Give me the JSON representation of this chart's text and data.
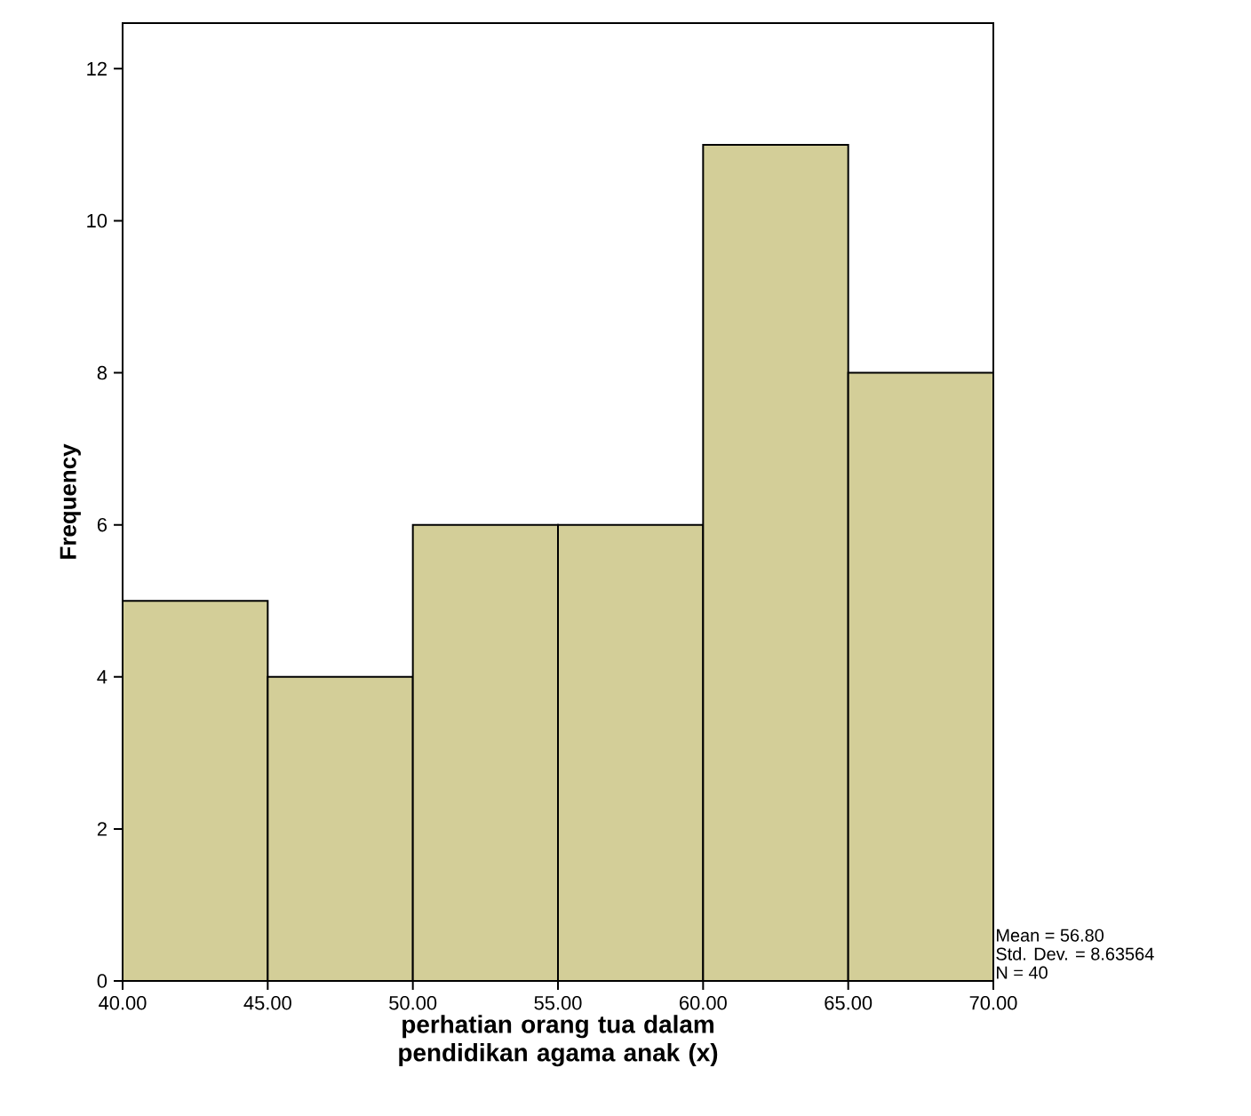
{
  "chart_data": {
    "type": "histogram",
    "xlabel": "perhatian orang tua dalam pendidikan agama anak (x)",
    "ylabel": "Frequency",
    "bins": [
      40,
      45,
      50,
      55,
      60,
      65,
      70
    ],
    "values": [
      5,
      4,
      6,
      6,
      11,
      8
    ],
    "color": "#d3ce98",
    "xlim": [
      40,
      70
    ],
    "ylim": [
      0,
      12.6
    ],
    "xticks": [
      {
        "value": 40,
        "label": "40.00"
      },
      {
        "value": 45,
        "label": "45.00"
      },
      {
        "value": 50,
        "label": "50.00"
      },
      {
        "value": 55,
        "label": "55.00"
      },
      {
        "value": 60,
        "label": "60.00"
      },
      {
        "value": 65,
        "label": "65.00"
      },
      {
        "value": 70,
        "label": "70.00"
      }
    ],
    "yticks": [
      0,
      2,
      4,
      6,
      8,
      10,
      12
    ],
    "annotations": [
      "Mean = 56.80",
      "Std. Dev. = 8.63564",
      "N = 40"
    ]
  }
}
